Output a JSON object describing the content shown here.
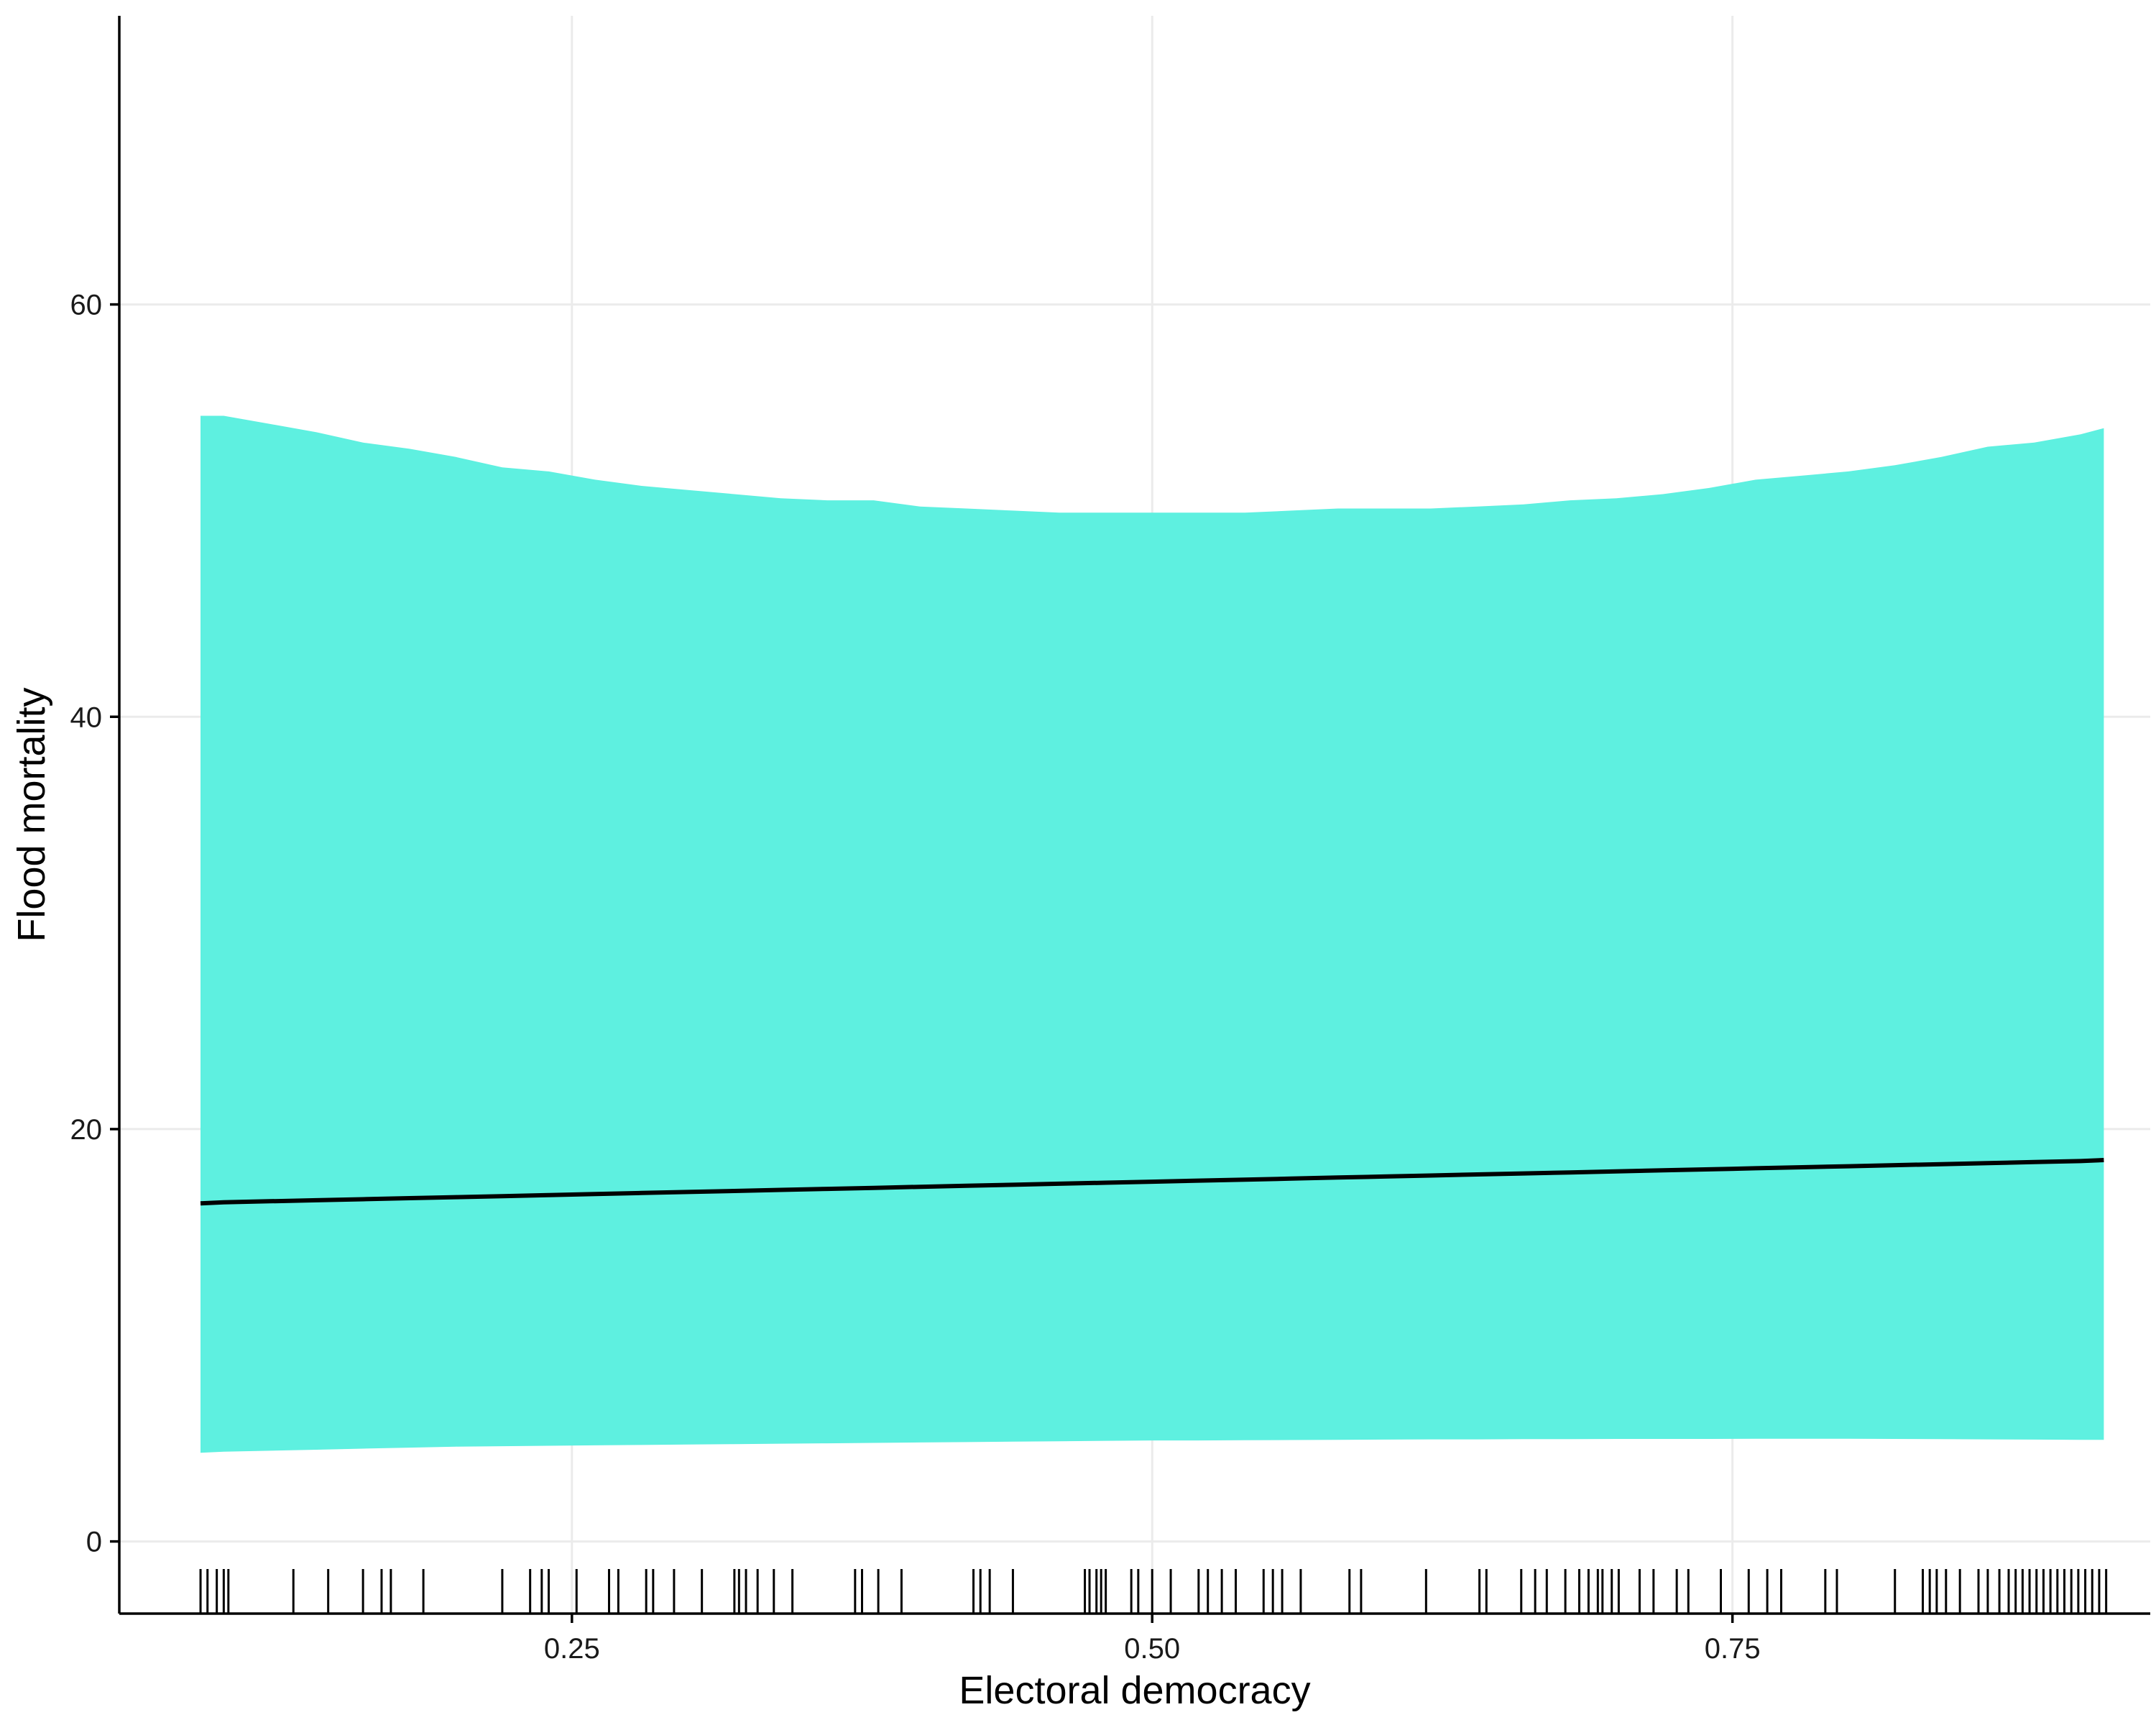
{
  "chart_data": {
    "type": "area",
    "title": "",
    "xlabel": "Electoral democracy",
    "ylabel": "Flood mortality",
    "xlim": [
      0.055,
      0.93
    ],
    "ylim": [
      -3.5,
      74
    ],
    "x_ticks": [
      {
        "value": 0.25,
        "label": "0.25"
      },
      {
        "value": 0.5,
        "label": "0.50"
      },
      {
        "value": 0.75,
        "label": "0.75"
      }
    ],
    "y_ticks": [
      {
        "value": 0,
        "label": "0"
      },
      {
        "value": 20,
        "label": "20"
      },
      {
        "value": 40,
        "label": "40"
      },
      {
        "value": 60,
        "label": "60"
      }
    ],
    "grid": true,
    "colors": {
      "band": "#5EF0E0",
      "line": "#000000",
      "grid": "#EBEBEB",
      "axis": "#000000"
    },
    "x": [
      0.09,
      0.1,
      0.12,
      0.14,
      0.16,
      0.18,
      0.2,
      0.22,
      0.24,
      0.26,
      0.28,
      0.3,
      0.32,
      0.34,
      0.36,
      0.38,
      0.4,
      0.42,
      0.44,
      0.46,
      0.48,
      0.5,
      0.52,
      0.54,
      0.56,
      0.58,
      0.6,
      0.62,
      0.64,
      0.66,
      0.68,
      0.7,
      0.72,
      0.74,
      0.76,
      0.78,
      0.8,
      0.82,
      0.84,
      0.86,
      0.88,
      0.9,
      0.91
    ],
    "series": [
      {
        "values": [
          16.4,
          16.45,
          16.5,
          16.55,
          16.6,
          16.65,
          16.7,
          16.75,
          16.8,
          16.85,
          16.9,
          16.95,
          17.0,
          17.05,
          17.1,
          17.15,
          17.2,
          17.25,
          17.3,
          17.35,
          17.4,
          17.45,
          17.5,
          17.55,
          17.6,
          17.65,
          17.7,
          17.75,
          17.8,
          17.85,
          17.9,
          17.95,
          18.0,
          18.05,
          18.1,
          18.15,
          18.2,
          18.25,
          18.3,
          18.35,
          18.4,
          18.45,
          18.5
        ]
      }
    ],
    "band_upper": [
      54.6,
      54.6,
      54.2,
      53.8,
      53.3,
      53.0,
      52.6,
      52.1,
      51.9,
      51.5,
      51.2,
      51.0,
      50.8,
      50.6,
      50.5,
      50.5,
      50.2,
      50.1,
      50.0,
      49.9,
      49.9,
      49.9,
      49.9,
      49.9,
      50.0,
      50.1,
      50.1,
      50.1,
      50.2,
      50.3,
      50.5,
      50.6,
      50.8,
      51.1,
      51.5,
      51.7,
      51.9,
      52.2,
      52.6,
      53.1,
      53.3,
      53.7,
      54.0
    ],
    "band_lower": [
      4.3,
      4.35,
      4.4,
      4.45,
      4.5,
      4.55,
      4.6,
      4.62,
      4.64,
      4.66,
      4.68,
      4.7,
      4.72,
      4.74,
      4.76,
      4.78,
      4.8,
      4.82,
      4.84,
      4.86,
      4.88,
      4.9,
      4.9,
      4.91,
      4.92,
      4.93,
      4.94,
      4.95,
      4.95,
      4.96,
      4.96,
      4.97,
      4.97,
      4.97,
      4.98,
      4.98,
      4.98,
      4.97,
      4.96,
      4.95,
      4.94,
      4.93,
      4.93
    ],
    "rug": [
      0.09,
      0.093,
      0.097,
      0.1,
      0.102,
      0.13,
      0.145,
      0.16,
      0.168,
      0.172,
      0.186,
      0.22,
      0.232,
      0.237,
      0.24,
      0.252,
      0.266,
      0.27,
      0.282,
      0.285,
      0.294,
      0.306,
      0.32,
      0.322,
      0.325,
      0.33,
      0.337,
      0.345,
      0.372,
      0.375,
      0.382,
      0.392,
      0.423,
      0.426,
      0.43,
      0.44,
      0.471,
      0.473,
      0.476,
      0.478,
      0.48,
      0.491,
      0.494,
      0.5,
      0.508,
      0.52,
      0.524,
      0.53,
      0.536,
      0.548,
      0.552,
      0.556,
      0.564,
      0.585,
      0.59,
      0.618,
      0.641,
      0.644,
      0.659,
      0.665,
      0.67,
      0.678,
      0.684,
      0.688,
      0.692,
      0.694,
      0.698,
      0.701,
      0.71,
      0.716,
      0.726,
      0.731,
      0.745,
      0.757,
      0.765,
      0.771,
      0.79,
      0.795,
      0.82,
      0.832,
      0.835,
      0.838,
      0.842,
      0.848,
      0.856,
      0.86,
      0.865,
      0.869,
      0.872,
      0.875,
      0.878,
      0.881,
      0.884,
      0.887,
      0.89,
      0.893,
      0.896,
      0.899,
      0.902,
      0.905,
      0.908,
      0.911
    ]
  }
}
